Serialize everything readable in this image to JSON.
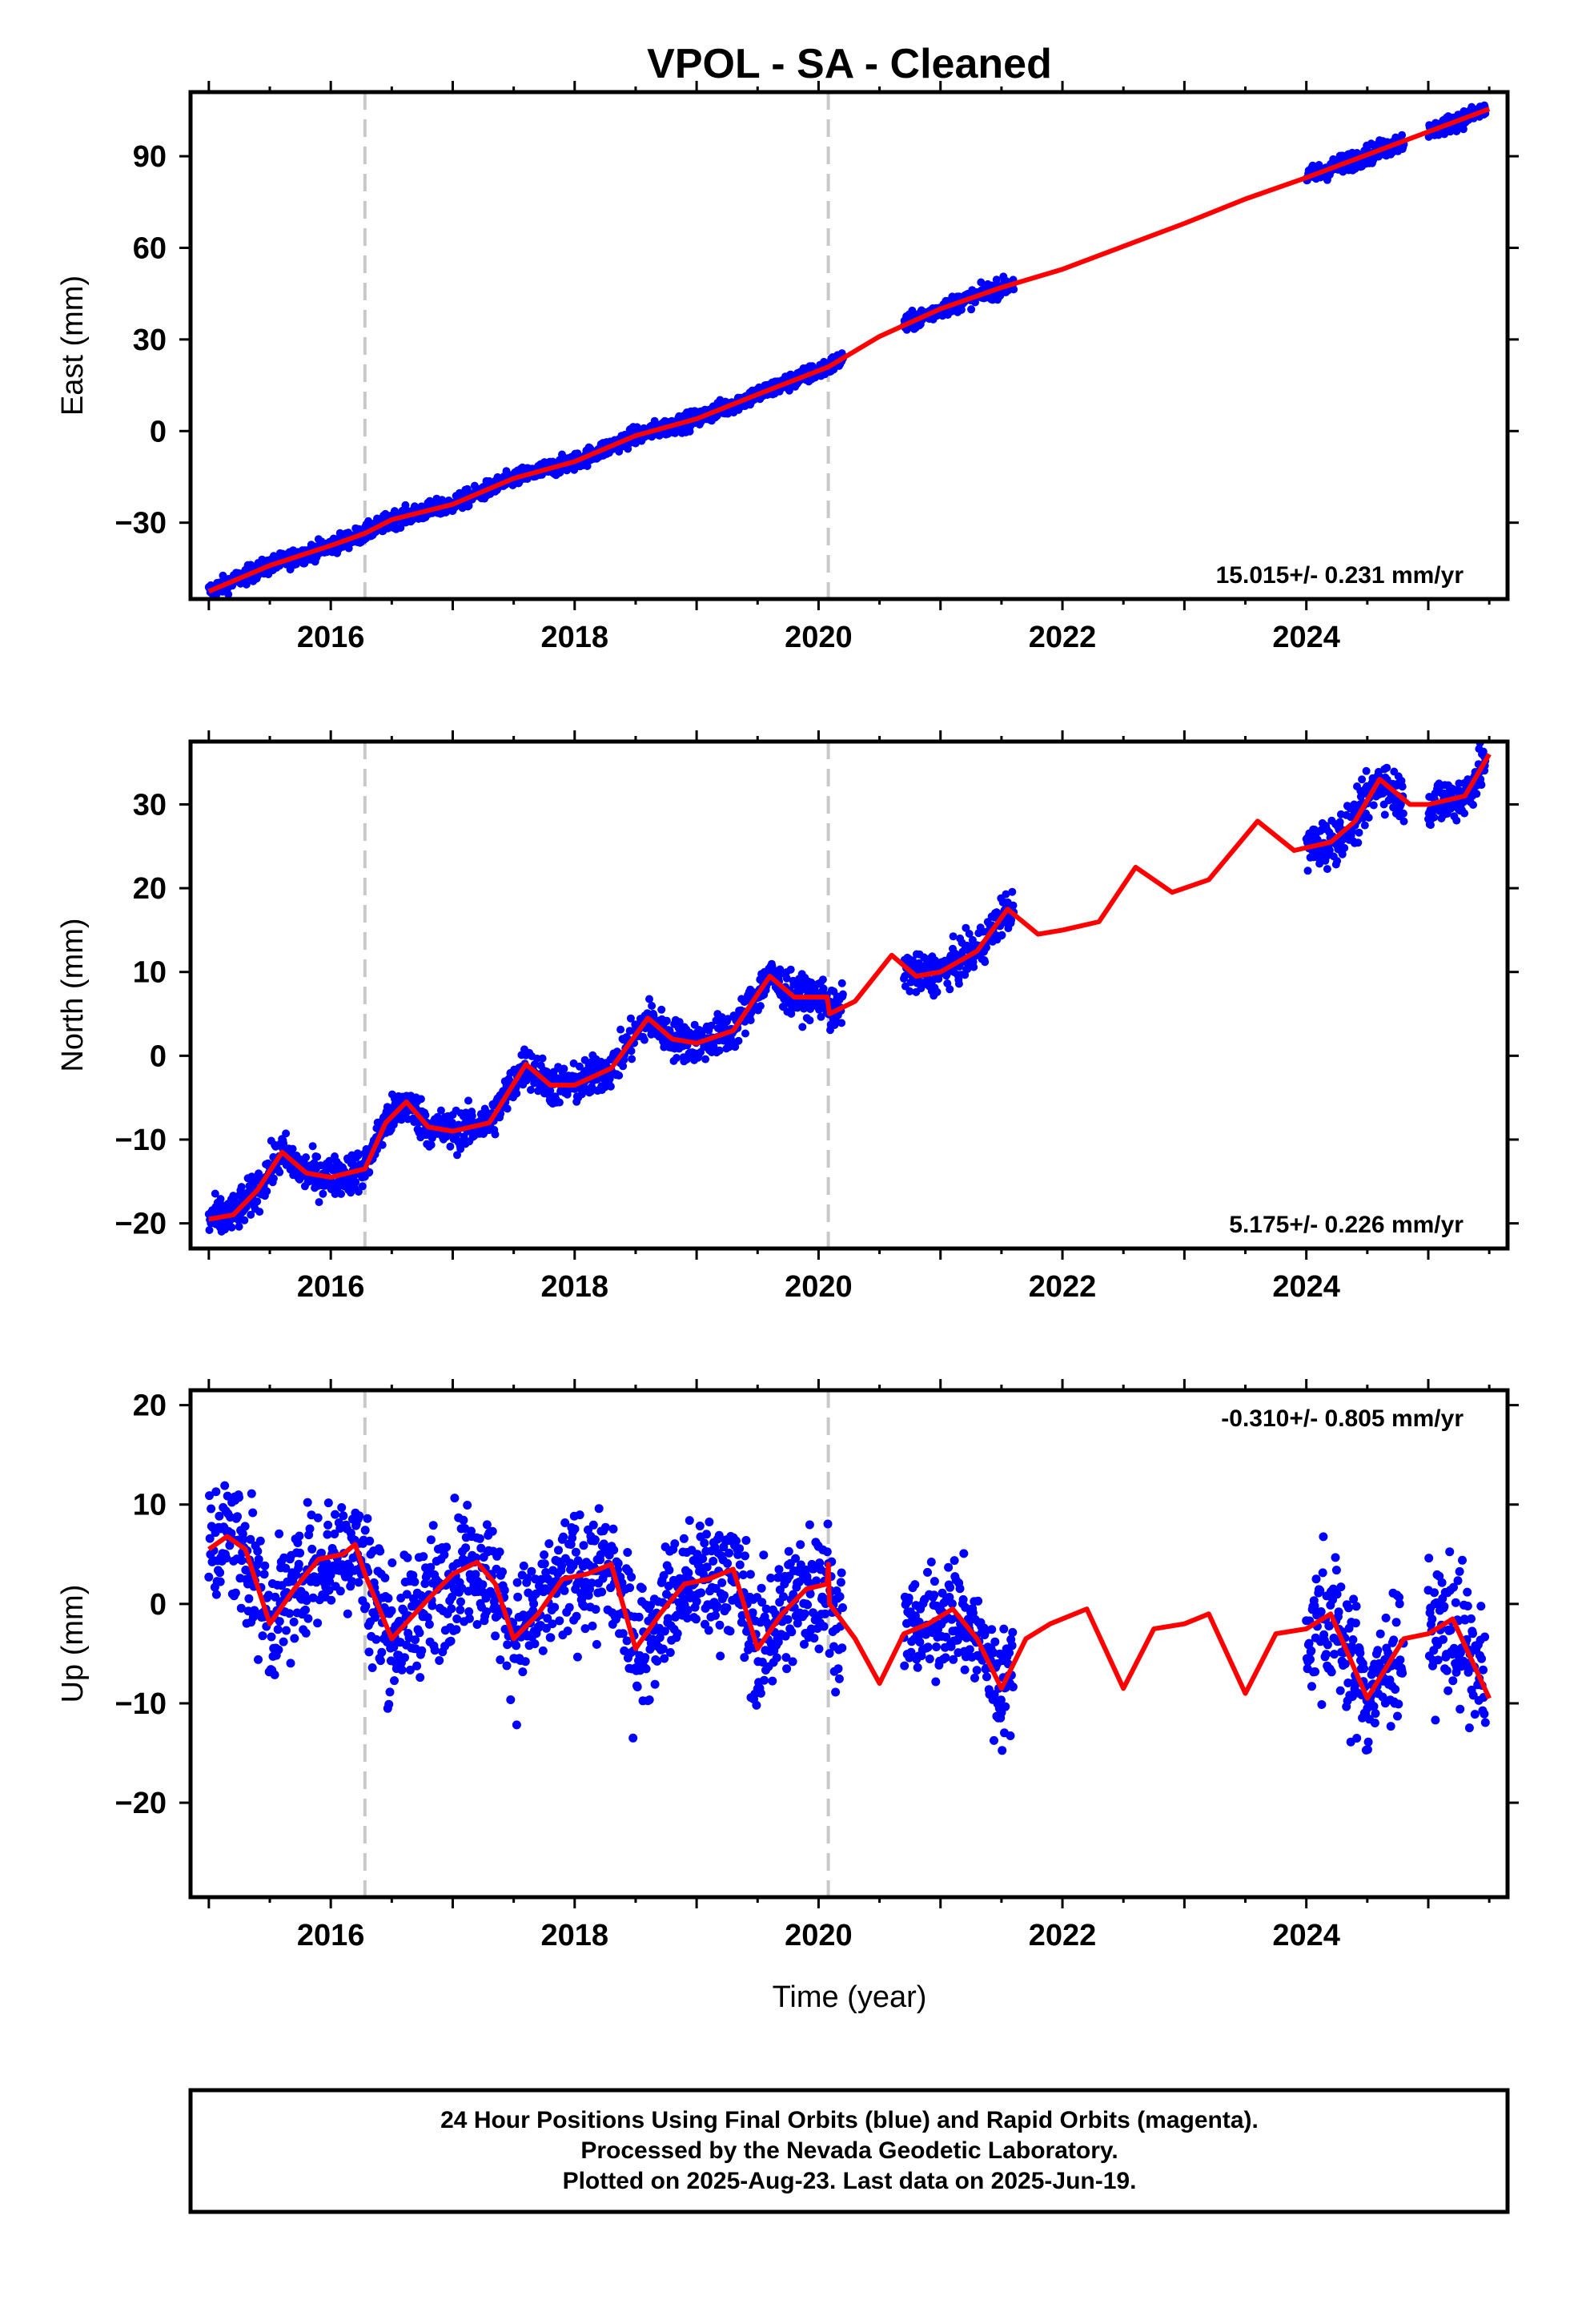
{
  "title": "VPOL  - SA - Cleaned",
  "x_axis_label": "Time (year)",
  "footer": {
    "line1": "24 Hour Positions Using Final Orbits (blue) and Rapid Orbits (magenta).",
    "line2": "Processed by the Nevada Geodetic Laboratory.",
    "line3": "Plotted on 2025-Aug-23. Last data on 2025-Jun-19."
  },
  "colors": {
    "points": "#0000ff",
    "model": "#ff0000",
    "breaks": "#c8c8c8",
    "axis": "#000000"
  },
  "chart_data": [
    {
      "type": "scatter",
      "ylabel": "East (mm)",
      "rate": "15.015+/- 0.231 mm/yr",
      "rate_position": "bottom-right",
      "xlim": [
        2014.85,
        2025.65
      ],
      "ylim": [
        -55,
        111
      ],
      "x_ticks": [
        2016,
        2018,
        2020,
        2022,
        2024
      ],
      "y_ticks": [
        -30,
        0,
        30,
        60,
        90
      ],
      "equipment_breaks": [
        2016.28,
        2020.08
      ],
      "model_curve": [
        [
          2015.0,
          -52.5
        ],
        [
          2015.5,
          -44.0
        ],
        [
          2016.0,
          -37.5
        ],
        [
          2016.28,
          -33.5
        ],
        [
          2016.5,
          -29.0
        ],
        [
          2017.0,
          -24.0
        ],
        [
          2017.5,
          -15.5
        ],
        [
          2018.0,
          -10.0
        ],
        [
          2018.5,
          -1.5
        ],
        [
          2019.0,
          4.0
        ],
        [
          2019.5,
          12.0
        ],
        [
          2020.08,
          21.0
        ],
        [
          2020.5,
          31.0
        ],
        [
          2021.0,
          40.0
        ],
        [
          2021.5,
          47.0
        ],
        [
          2022.0,
          53.0
        ],
        [
          2022.5,
          60.5
        ],
        [
          2023.0,
          68.0
        ],
        [
          2023.5,
          76.0
        ],
        [
          2024.0,
          83.0
        ],
        [
          2024.5,
          90.5
        ],
        [
          2025.0,
          98.0
        ],
        [
          2025.5,
          105.5
        ]
      ],
      "data_segments": [
        {
          "start": 2015.0,
          "end": 2020.2,
          "spread": 2.0
        },
        {
          "start": 2020.7,
          "end": 2021.6,
          "spread": 2.0
        },
        {
          "start": 2024.0,
          "end": 2024.8,
          "spread": 2.2
        },
        {
          "start": 2025.0,
          "end": 2025.47,
          "spread": 2.0
        }
      ]
    },
    {
      "type": "scatter",
      "ylabel": "North (mm)",
      "rate": "5.175+/- 0.226 mm/yr",
      "rate_position": "bottom-right",
      "xlim": [
        2014.85,
        2025.65
      ],
      "ylim": [
        -23,
        37.5
      ],
      "x_ticks": [
        2016,
        2018,
        2020,
        2022,
        2024
      ],
      "y_ticks": [
        -20,
        -10,
        0,
        10,
        20,
        30
      ],
      "equipment_breaks": [
        2016.28,
        2020.08
      ],
      "model_curve": [
        [
          2015.0,
          -19.5
        ],
        [
          2015.2,
          -19.0
        ],
        [
          2015.4,
          -16.0
        ],
        [
          2015.6,
          -11.5
        ],
        [
          2015.8,
          -14.0
        ],
        [
          2016.0,
          -14.5
        ],
        [
          2016.28,
          -13.5
        ],
        [
          2016.45,
          -8.0
        ],
        [
          2016.62,
          -5.5
        ],
        [
          2016.8,
          -8.5
        ],
        [
          2017.0,
          -9.0
        ],
        [
          2017.3,
          -8.0
        ],
        [
          2017.6,
          -1.0
        ],
        [
          2017.8,
          -3.5
        ],
        [
          2018.0,
          -3.5
        ],
        [
          2018.3,
          -1.5
        ],
        [
          2018.6,
          4.5
        ],
        [
          2018.8,
          2.0
        ],
        [
          2019.0,
          1.5
        ],
        [
          2019.3,
          3.0
        ],
        [
          2019.6,
          9.5
        ],
        [
          2019.8,
          7.0
        ],
        [
          2020.07,
          7.0
        ],
        [
          2020.09,
          5.0
        ],
        [
          2020.3,
          6.5
        ],
        [
          2020.6,
          12.0
        ],
        [
          2020.8,
          9.5
        ],
        [
          2021.0,
          10.0
        ],
        [
          2021.3,
          12.5
        ],
        [
          2021.55,
          17.5
        ],
        [
          2021.8,
          14.5
        ],
        [
          2022.0,
          15.0
        ],
        [
          2022.3,
          16.0
        ],
        [
          2022.6,
          22.5
        ],
        [
          2022.9,
          19.5
        ],
        [
          2023.2,
          21.0
        ],
        [
          2023.6,
          28.0
        ],
        [
          2023.9,
          24.5
        ],
        [
          2024.2,
          25.5
        ],
        [
          2024.4,
          28.0
        ],
        [
          2024.6,
          33.0
        ],
        [
          2024.85,
          30.0
        ],
        [
          2025.0,
          30.0
        ],
        [
          2025.3,
          31.0
        ],
        [
          2025.5,
          36.0
        ]
      ],
      "data_segments": [
        {
          "start": 2015.0,
          "end": 2020.2,
          "spread": 1.7
        },
        {
          "start": 2020.7,
          "end": 2021.6,
          "spread": 1.7
        },
        {
          "start": 2024.0,
          "end": 2024.8,
          "spread": 2.0
        },
        {
          "start": 2025.0,
          "end": 2025.47,
          "spread": 2.0
        }
      ]
    },
    {
      "type": "scatter",
      "ylabel": "Up (mm)",
      "rate": "-0.310+/- 0.805 mm/yr",
      "rate_position": "top-right",
      "xlim": [
        2014.85,
        2025.65
      ],
      "ylim": [
        -29.5,
        21.5
      ],
      "x_ticks": [
        2016,
        2018,
        2020,
        2022,
        2024
      ],
      "y_ticks": [
        -20,
        -10,
        0,
        10,
        20
      ],
      "equipment_breaks": [
        2016.28,
        2020.08
      ],
      "model_curve": [
        [
          2015.0,
          5.5
        ],
        [
          2015.15,
          6.8
        ],
        [
          2015.3,
          5.5
        ],
        [
          2015.5,
          -2.0
        ],
        [
          2015.7,
          1.5
        ],
        [
          2015.9,
          4.5
        ],
        [
          2016.1,
          5.0
        ],
        [
          2016.2,
          6.0
        ],
        [
          2016.28,
          3.0
        ],
        [
          2016.5,
          -3.5
        ],
        [
          2016.8,
          0.5
        ],
        [
          2017.0,
          3.0
        ],
        [
          2017.2,
          4.2
        ],
        [
          2017.35,
          2.0
        ],
        [
          2017.5,
          -3.5
        ],
        [
          2017.7,
          -1.0
        ],
        [
          2017.9,
          2.5
        ],
        [
          2018.1,
          3.0
        ],
        [
          2018.3,
          4.0
        ],
        [
          2018.5,
          -4.5
        ],
        [
          2018.7,
          -1.0
        ],
        [
          2018.9,
          2.0
        ],
        [
          2019.1,
          2.5
        ],
        [
          2019.3,
          3.5
        ],
        [
          2019.5,
          -4.5
        ],
        [
          2019.7,
          -1.0
        ],
        [
          2019.9,
          1.5
        ],
        [
          2020.07,
          2.0
        ],
        [
          2020.08,
          4.0
        ],
        [
          2020.09,
          0.0
        ],
        [
          2020.3,
          -3.5
        ],
        [
          2020.5,
          -8.0
        ],
        [
          2020.7,
          -3.0
        ],
        [
          2020.9,
          -2.0
        ],
        [
          2021.1,
          -0.5
        ],
        [
          2021.3,
          -3.5
        ],
        [
          2021.5,
          -8.5
        ],
        [
          2021.7,
          -3.5
        ],
        [
          2021.9,
          -2.0
        ],
        [
          2022.2,
          -0.5
        ],
        [
          2022.5,
          -8.5
        ],
        [
          2022.75,
          -2.5
        ],
        [
          2023.0,
          -2.0
        ],
        [
          2023.2,
          -1.0
        ],
        [
          2023.5,
          -9.0
        ],
        [
          2023.75,
          -3.0
        ],
        [
          2024.0,
          -2.5
        ],
        [
          2024.2,
          -1.0
        ],
        [
          2024.5,
          -9.5
        ],
        [
          2024.8,
          -3.5
        ],
        [
          2025.0,
          -3.0
        ],
        [
          2025.2,
          -1.5
        ],
        [
          2025.5,
          -9.5
        ]
      ],
      "data_segments": [
        {
          "start": 2015.0,
          "end": 2020.2,
          "spread": 4.5
        },
        {
          "start": 2020.7,
          "end": 2021.6,
          "spread": 4.0
        },
        {
          "start": 2024.0,
          "end": 2024.8,
          "spread": 5.0
        },
        {
          "start": 2025.0,
          "end": 2025.47,
          "spread": 5.0
        }
      ]
    }
  ]
}
